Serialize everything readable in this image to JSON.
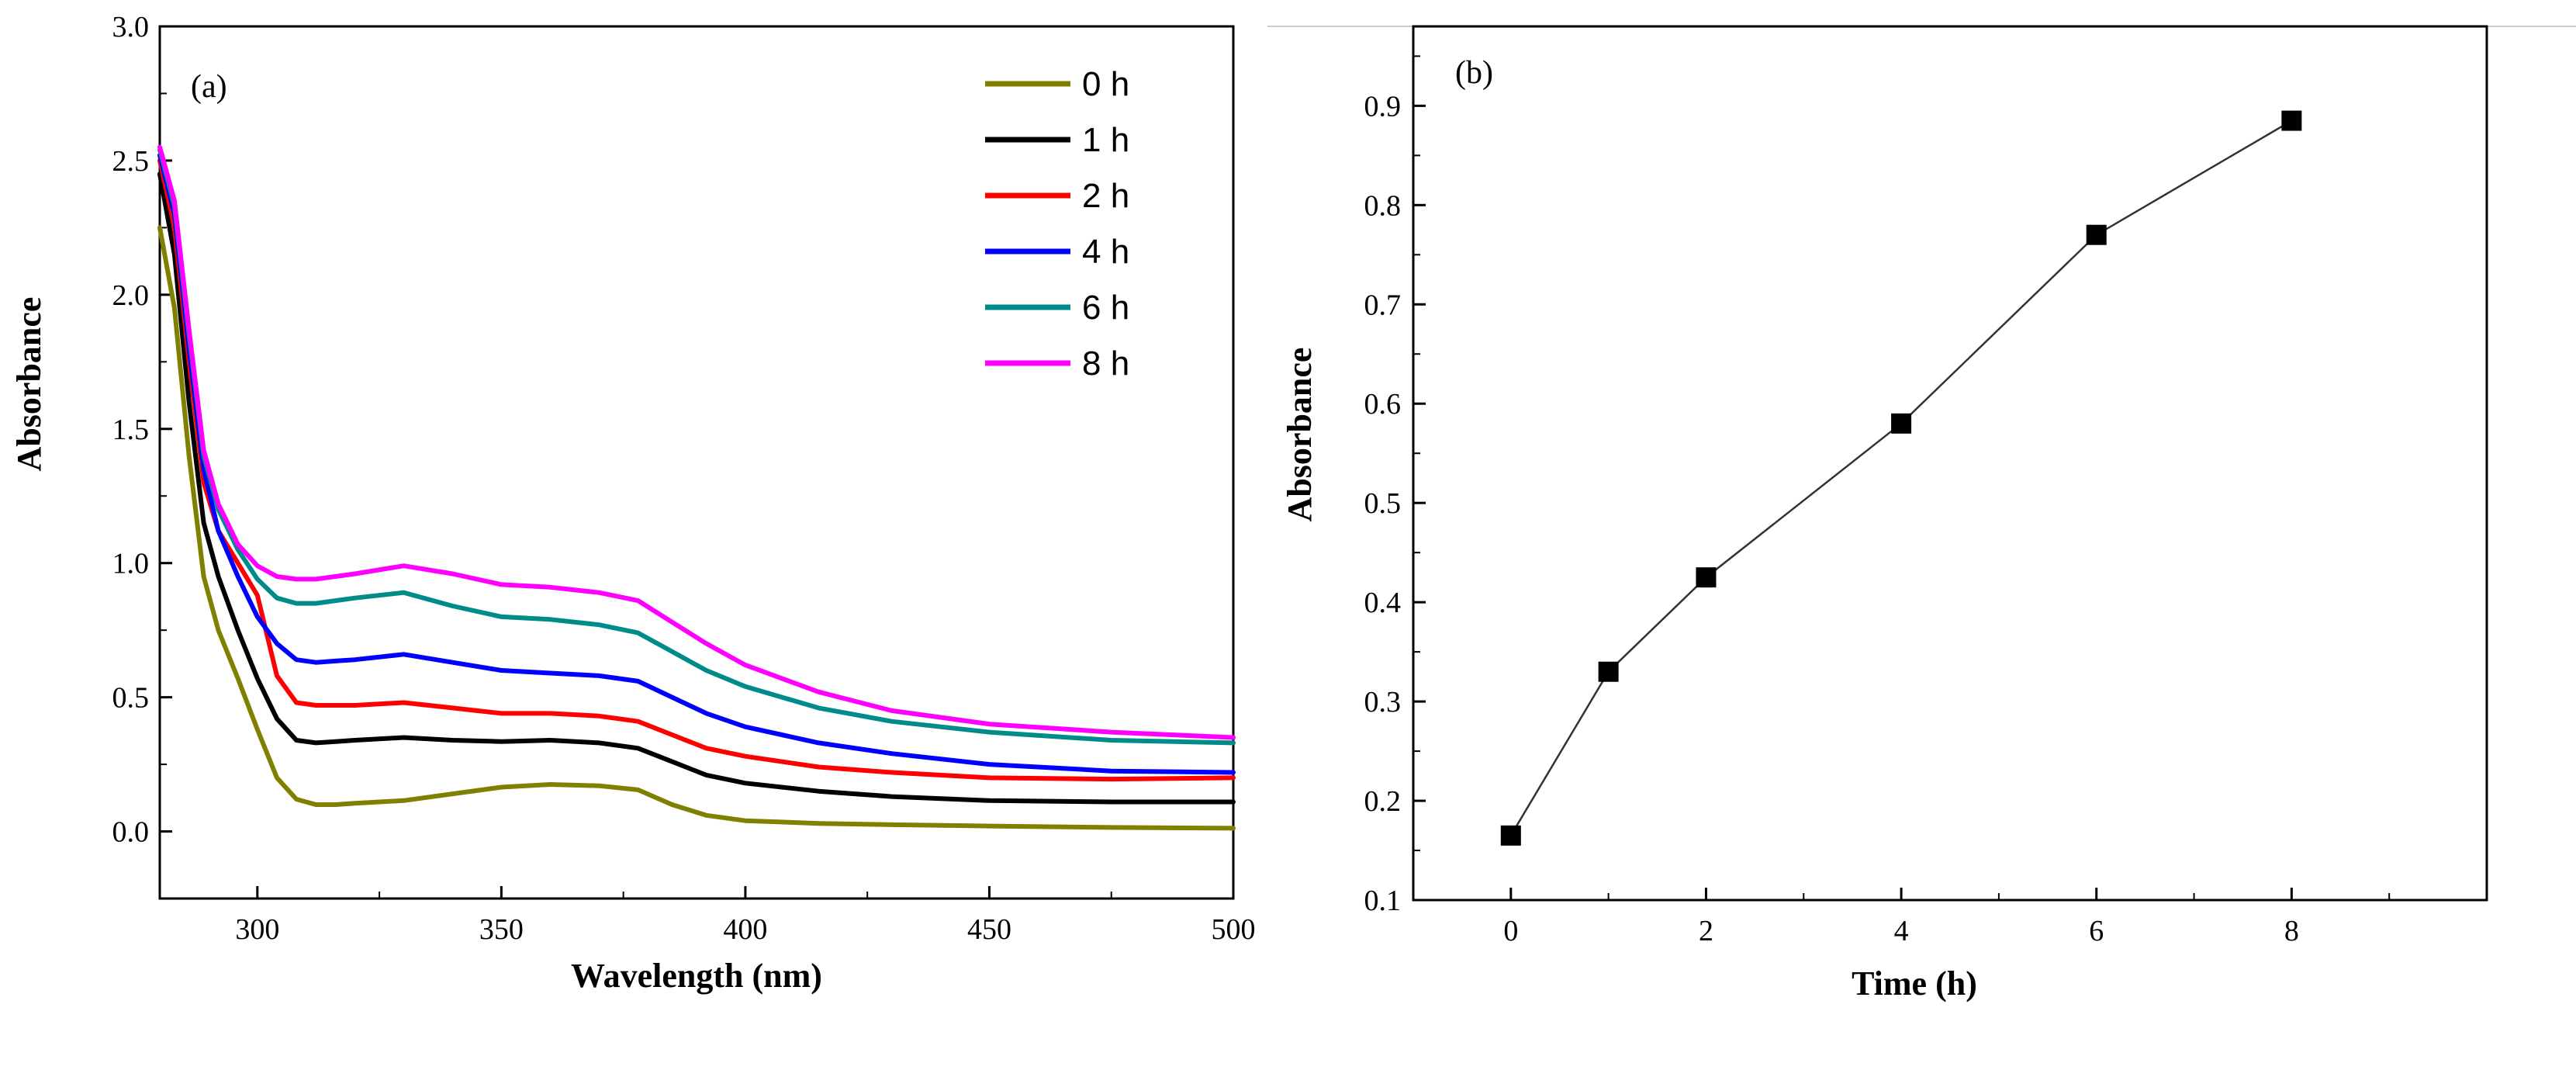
{
  "chart_data": [
    {
      "type": "line",
      "panel_label": "(a)",
      "xlabel": "Wavelength (nm)",
      "ylabel": "Absorbance",
      "xlim": [
        280,
        500
      ],
      "ylim": [
        -0.25,
        3.0
      ],
      "xticks": [
        300,
        350,
        400,
        450,
        500
      ],
      "yticks": [
        0.0,
        0.5,
        1.0,
        1.5,
        2.0,
        2.5,
        3.0
      ],
      "ytick_labels": [
        "0.0",
        "0.5",
        "1.0",
        "1.5",
        "2.0",
        "2.5",
        "3.0"
      ],
      "legend_position": "top-right",
      "x": [
        280,
        283,
        286,
        289,
        292,
        296,
        300,
        304,
        308,
        312,
        316,
        320,
        330,
        340,
        350,
        360,
        370,
        378,
        385,
        392,
        400,
        415,
        430,
        450,
        475,
        500
      ],
      "series": [
        {
          "name": "0 h",
          "color": "#808000",
          "values": [
            2.25,
            1.95,
            1.4,
            0.95,
            0.75,
            0.57,
            0.38,
            0.2,
            0.12,
            0.1,
            0.1,
            0.105,
            0.115,
            0.14,
            0.165,
            0.175,
            0.17,
            0.155,
            0.1,
            0.06,
            0.04,
            0.03,
            0.025,
            0.02,
            0.015,
            0.012
          ]
        },
        {
          "name": "1 h",
          "color": "#000000",
          "values": [
            2.45,
            2.15,
            1.6,
            1.15,
            0.95,
            0.75,
            0.57,
            0.42,
            0.34,
            0.33,
            0.335,
            0.34,
            0.35,
            0.34,
            0.335,
            0.34,
            0.33,
            0.31,
            0.26,
            0.21,
            0.18,
            0.15,
            0.13,
            0.115,
            0.11,
            0.11
          ]
        },
        {
          "name": "2 h",
          "color": "#ff0000",
          "values": [
            2.5,
            2.25,
            1.75,
            1.3,
            1.12,
            1.0,
            0.88,
            0.58,
            0.48,
            0.47,
            0.47,
            0.47,
            0.48,
            0.46,
            0.44,
            0.44,
            0.43,
            0.41,
            0.36,
            0.31,
            0.28,
            0.24,
            0.22,
            0.2,
            0.195,
            0.2
          ]
        },
        {
          "name": "4 h",
          "color": "#0000ff",
          "values": [
            2.52,
            2.3,
            1.8,
            1.35,
            1.12,
            0.95,
            0.8,
            0.7,
            0.64,
            0.63,
            0.635,
            0.64,
            0.66,
            0.63,
            0.6,
            0.59,
            0.58,
            0.56,
            0.5,
            0.44,
            0.39,
            0.33,
            0.29,
            0.25,
            0.225,
            0.22
          ]
        },
        {
          "name": "6 h",
          "color": "#008b8b",
          "values": [
            2.54,
            2.33,
            1.85,
            1.4,
            1.2,
            1.05,
            0.94,
            0.87,
            0.85,
            0.85,
            0.86,
            0.87,
            0.89,
            0.84,
            0.8,
            0.79,
            0.77,
            0.74,
            0.67,
            0.6,
            0.54,
            0.46,
            0.41,
            0.37,
            0.34,
            0.33
          ]
        },
        {
          "name": "8 h",
          "color": "#ff00ff",
          "values": [
            2.55,
            2.35,
            1.87,
            1.42,
            1.22,
            1.07,
            0.99,
            0.95,
            0.94,
            0.94,
            0.95,
            0.96,
            0.99,
            0.96,
            0.92,
            0.91,
            0.89,
            0.86,
            0.78,
            0.7,
            0.62,
            0.52,
            0.45,
            0.4,
            0.37,
            0.35
          ]
        }
      ]
    },
    {
      "type": "line",
      "panel_label": "(b)",
      "xlabel": "Time (h)",
      "ylabel": "Absorbance",
      "xlim": [
        -1,
        10
      ],
      "ylim": [
        0.1,
        0.98
      ],
      "xticks": [
        0,
        2,
        4,
        6,
        8
      ],
      "yticks": [
        0.1,
        0.2,
        0.3,
        0.4,
        0.5,
        0.6,
        0.7,
        0.8,
        0.9
      ],
      "ytick_labels": [
        "0.1",
        "0.2",
        "0.3",
        "0.4",
        "0.5",
        "0.6",
        "0.7",
        "0.8",
        "0.9"
      ],
      "marker": "square",
      "series": [
        {
          "name": "Absorbance",
          "color": "#000000",
          "x": [
            0,
            1,
            2,
            4,
            6,
            8
          ],
          "values": [
            0.165,
            0.33,
            0.425,
            0.58,
            0.77,
            0.885
          ]
        }
      ]
    }
  ]
}
